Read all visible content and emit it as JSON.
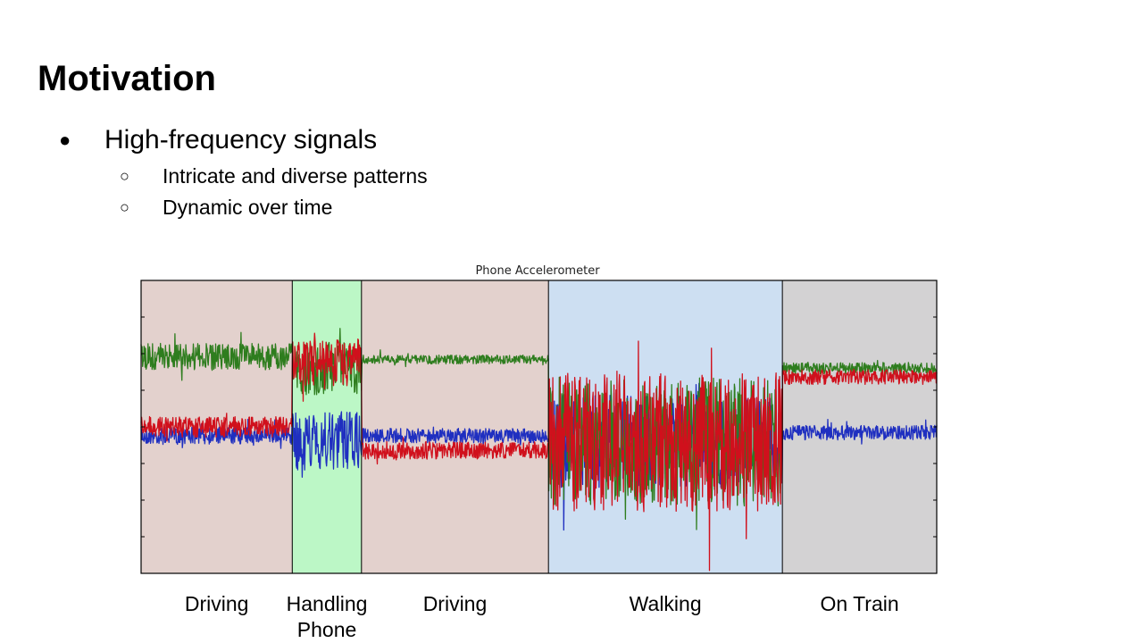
{
  "slide": {
    "title": "Motivation",
    "bullets": [
      {
        "marker": "●",
        "text": "High-frequency signals"
      },
      {
        "marker": "○",
        "text": "Intricate and diverse patterns"
      },
      {
        "marker": "○",
        "text": "Dynamic over time"
      }
    ]
  },
  "chart_data": {
    "type": "line",
    "title": "Phone Accelerometer",
    "xlabel": "",
    "ylabel": "",
    "grid": false,
    "legend": "none",
    "segments": [
      {
        "label": "Driving",
        "start": 0.0,
        "end": 0.19,
        "color": "#e3d1cd"
      },
      {
        "label": "Handling\nPhone",
        "start": 0.19,
        "end": 0.277,
        "color": "#bcf7c6"
      },
      {
        "label": "Driving",
        "start": 0.277,
        "end": 0.512,
        "color": "#e3d1cd"
      },
      {
        "label": "Walking",
        "start": 0.512,
        "end": 0.806,
        "color": "#cddff2"
      },
      {
        "label": "On Train",
        "start": 0.806,
        "end": 1.0,
        "color": "#d3d2d3"
      }
    ],
    "series": [
      {
        "color": "#2e7d1e"
      },
      {
        "color": "#d0101c"
      },
      {
        "color": "#1f2fc0"
      }
    ]
  }
}
